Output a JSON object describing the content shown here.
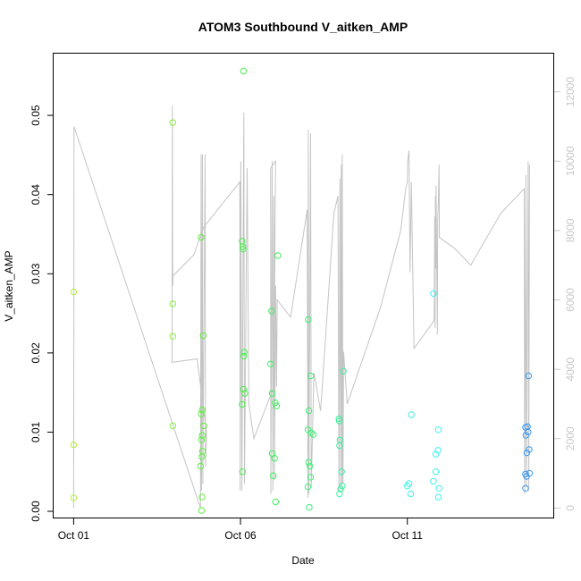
{
  "chart_data": {
    "type": "scatter",
    "title": "ATOM3 Southbound V_aitken_AMP",
    "xlabel": "Date",
    "ylabel": "V_aitken_AMP",
    "x_unit": "days since Oct 01",
    "x_ticks": [
      {
        "value": 0,
        "label": "Oct 01"
      },
      {
        "value": 5,
        "label": "Oct 06"
      },
      {
        "value": 10,
        "label": "Oct 11"
      }
    ],
    "xlim": [
      -0.6,
      14.4
    ],
    "y_ticks": [
      0.0,
      0.01,
      0.02,
      0.03,
      0.04,
      0.05
    ],
    "y_tick_labels": [
      "0.00",
      "0.01",
      "0.02",
      "0.03",
      "0.04",
      "0.05"
    ],
    "ylim": [
      -0.0009,
      0.0578
    ],
    "y2_ticks": [
      0,
      2000,
      4000,
      6000,
      8000,
      10000,
      12000
    ],
    "y2_tick_labels": [
      "0",
      "2000",
      "4000",
      "6000",
      "8000",
      "10000",
      "12000"
    ],
    "y2lim": [
      -300,
      13100
    ],
    "grid": false,
    "colors": {
      "trace": "#c4c4c4",
      "right_axis": "#c8c8c8"
    },
    "series": [
      {
        "role": "points",
        "points": [
          {
            "x": 0.0,
            "y": 0.0277,
            "color": "#b3f03c"
          },
          {
            "x": 0.0,
            "y": 0.0084,
            "color": "#b3f03c"
          },
          {
            "x": 0.0,
            "y": 0.0017,
            "color": "#b3f03c"
          },
          {
            "x": 2.97,
            "y": 0.0491,
            "color": "#87ef3b"
          },
          {
            "x": 2.97,
            "y": 0.0262,
            "color": "#87ef3b"
          },
          {
            "x": 2.97,
            "y": 0.0221,
            "color": "#87ef3b"
          },
          {
            "x": 2.97,
            "y": 0.0108,
            "color": "#87ef3b"
          },
          {
            "x": 3.82,
            "y": 0.0346,
            "color": "#5df03c"
          },
          {
            "x": 3.82,
            "y": 0.0123,
            "color": "#5df03c"
          },
          {
            "x": 3.85,
            "y": 0.0128,
            "color": "#5df03c"
          },
          {
            "x": 3.88,
            "y": 0.0222,
            "color": "#5df03c"
          },
          {
            "x": 3.9,
            "y": 0.0108,
            "color": "#5df03c"
          },
          {
            "x": 3.85,
            "y": 0.0096,
            "color": "#5df03c"
          },
          {
            "x": 3.83,
            "y": 0.009,
            "color": "#5df03c"
          },
          {
            "x": 3.86,
            "y": 0.0076,
            "color": "#5df03c"
          },
          {
            "x": 3.84,
            "y": 0.0069,
            "color": "#5df03c"
          },
          {
            "x": 3.8,
            "y": 0.0057,
            "color": "#5df03c"
          },
          {
            "x": 3.85,
            "y": 0.0018,
            "color": "#5df03c"
          },
          {
            "x": 3.83,
            "y": 0.0001,
            "color": "#5df03c"
          },
          {
            "x": 5.09,
            "y": 0.0556,
            "color": "#48f048"
          },
          {
            "x": 5.05,
            "y": 0.0341,
            "color": "#48f048"
          },
          {
            "x": 5.07,
            "y": 0.0334,
            "color": "#48f048"
          },
          {
            "x": 5.08,
            "y": 0.0331,
            "color": "#48f048"
          },
          {
            "x": 5.11,
            "y": 0.0201,
            "color": "#48f048"
          },
          {
            "x": 5.1,
            "y": 0.0196,
            "color": "#48f048"
          },
          {
            "x": 5.09,
            "y": 0.0154,
            "color": "#48f048"
          },
          {
            "x": 5.13,
            "y": 0.0149,
            "color": "#48f048"
          },
          {
            "x": 5.05,
            "y": 0.0135,
            "color": "#48f048"
          },
          {
            "x": 5.06,
            "y": 0.005,
            "color": "#48f048"
          },
          {
            "x": 5.93,
            "y": 0.0253,
            "color": "#3cf05a"
          },
          {
            "x": 6.12,
            "y": 0.0323,
            "color": "#3cf05a"
          },
          {
            "x": 5.9,
            "y": 0.0186,
            "color": "#3cf05a"
          },
          {
            "x": 5.95,
            "y": 0.0149,
            "color": "#3cf05a"
          },
          {
            "x": 6.04,
            "y": 0.0137,
            "color": "#3cf05a"
          },
          {
            "x": 6.08,
            "y": 0.0133,
            "color": "#3cf05a"
          },
          {
            "x": 5.95,
            "y": 0.0073,
            "color": "#3cf05a"
          },
          {
            "x": 6.02,
            "y": 0.0067,
            "color": "#3cf05a"
          },
          {
            "x": 5.98,
            "y": 0.0045,
            "color": "#3cf05a"
          },
          {
            "x": 6.05,
            "y": 0.0012,
            "color": "#3cf05a"
          },
          {
            "x": 7.03,
            "y": 0.0242,
            "color": "#3cf078"
          },
          {
            "x": 7.1,
            "y": 0.0171,
            "color": "#3cf078"
          },
          {
            "x": 7.05,
            "y": 0.0127,
            "color": "#3cf078"
          },
          {
            "x": 7.02,
            "y": 0.0103,
            "color": "#3cf078"
          },
          {
            "x": 7.12,
            "y": 0.0099,
            "color": "#3cf078"
          },
          {
            "x": 7.18,
            "y": 0.0097,
            "color": "#3cf078"
          },
          {
            "x": 7.04,
            "y": 0.0062,
            "color": "#3cf078"
          },
          {
            "x": 7.08,
            "y": 0.0057,
            "color": "#3cf078"
          },
          {
            "x": 7.1,
            "y": 0.0043,
            "color": "#3cf078"
          },
          {
            "x": 7.02,
            "y": 0.0031,
            "color": "#3cf078"
          },
          {
            "x": 7.06,
            "y": 0.0005,
            "color": "#3cf078"
          },
          {
            "x": 7.98,
            "y": 0.009,
            "color": "#3cf0a0"
          },
          {
            "x": 7.96,
            "y": 0.0114,
            "color": "#3cf0a0"
          },
          {
            "x": 7.95,
            "y": 0.0117,
            "color": "#3cf0a0"
          },
          {
            "x": 8.08,
            "y": 0.0177,
            "color": "#3cf0a0"
          },
          {
            "x": 7.97,
            "y": 0.0083,
            "color": "#3cf0a0"
          },
          {
            "x": 8.03,
            "y": 0.005,
            "color": "#3cf0a0"
          },
          {
            "x": 8.05,
            "y": 0.0032,
            "color": "#3cf0a0"
          },
          {
            "x": 8.0,
            "y": 0.0028,
            "color": "#3cf0a0"
          },
          {
            "x": 7.97,
            "y": 0.0022,
            "color": "#3cf0a0"
          },
          {
            "x": 10.05,
            "y": 0.0035,
            "color": "#3cf0e6"
          },
          {
            "x": 10.0,
            "y": 0.0032,
            "color": "#3cf0e6"
          },
          {
            "x": 10.12,
            "y": 0.0122,
            "color": "#3cf0e6"
          },
          {
            "x": 10.1,
            "y": 0.0022,
            "color": "#3cf0e6"
          },
          {
            "x": 10.78,
            "y": 0.0275,
            "color": "#3cf0f0"
          },
          {
            "x": 10.93,
            "y": 0.0103,
            "color": "#3cf0f0"
          },
          {
            "x": 10.92,
            "y": 0.0077,
            "color": "#3cf0f0"
          },
          {
            "x": 10.85,
            "y": 0.0072,
            "color": "#3cf0f0"
          },
          {
            "x": 10.85,
            "y": 0.005,
            "color": "#3cf0f0"
          },
          {
            "x": 10.78,
            "y": 0.0038,
            "color": "#3cf0f0"
          },
          {
            "x": 10.95,
            "y": 0.0029,
            "color": "#3cf0f0"
          },
          {
            "x": 10.93,
            "y": 0.0018,
            "color": "#3cf0f0"
          },
          {
            "x": 13.63,
            "y": 0.0171,
            "color": "#3c9bf0"
          },
          {
            "x": 13.54,
            "y": 0.0106,
            "color": "#3c9bf0"
          },
          {
            "x": 13.6,
            "y": 0.0107,
            "color": "#3c9bf0"
          },
          {
            "x": 13.55,
            "y": 0.0096,
            "color": "#3c9bf0"
          },
          {
            "x": 13.62,
            "y": 0.01,
            "color": "#3c9bf0"
          },
          {
            "x": 13.65,
            "y": 0.0078,
            "color": "#3c9bf0"
          },
          {
            "x": 13.58,
            "y": 0.0074,
            "color": "#3c9bf0"
          },
          {
            "x": 13.54,
            "y": 0.0047,
            "color": "#3c9bf0"
          },
          {
            "x": 13.57,
            "y": 0.0044,
            "color": "#3c9bf0"
          },
          {
            "x": 13.66,
            "y": 0.0048,
            "color": "#3c9bf0"
          },
          {
            "x": 13.54,
            "y": 0.0029,
            "color": "#3c9bf0"
          }
        ]
      },
      {
        "role": "trace",
        "axis": "right",
        "points": [
          {
            "x": 0.0,
            "y": 0
          },
          {
            "x": 0.01,
            "y": 11000
          },
          {
            "x": 3.8,
            "y": 0
          },
          {
            "x": 3.82,
            "y": 10200
          },
          {
            "x": 3.83,
            "y": 500
          },
          {
            "x": 3.86,
            "y": 10200
          },
          {
            "x": 3.87,
            "y": 700
          },
          {
            "x": 3.94,
            "y": 10200
          },
          {
            "x": 3.95,
            "y": 1200
          },
          {
            "x": 3.98,
            "y": 2200
          },
          {
            "x": 3.7,
            "y": 4300
          },
          {
            "x": 2.95,
            "y": 4200
          },
          {
            "x": 2.96,
            "y": 11600
          },
          {
            "x": 2.97,
            "y": 6400
          },
          {
            "x": 2.98,
            "y": 6700
          },
          {
            "x": 3.6,
            "y": 7300
          },
          {
            "x": 3.9,
            "y": 8100
          },
          {
            "x": 4.98,
            "y": 9400
          },
          {
            "x": 4.99,
            "y": 500
          },
          {
            "x": 5.01,
            "y": 10000
          },
          {
            "x": 5.04,
            "y": 500
          },
          {
            "x": 5.1,
            "y": 11400
          },
          {
            "x": 5.12,
            "y": 700
          },
          {
            "x": 5.2,
            "y": 9800
          },
          {
            "x": 5.25,
            "y": 3000
          },
          {
            "x": 5.4,
            "y": 2000
          },
          {
            "x": 6.0,
            "y": 3500
          },
          {
            "x": 6.05,
            "y": 10000
          },
          {
            "x": 5.9,
            "y": 9800
          },
          {
            "x": 5.91,
            "y": 400
          },
          {
            "x": 5.95,
            "y": 10000
          },
          {
            "x": 5.97,
            "y": 500
          },
          {
            "x": 6.0,
            "y": 9000
          },
          {
            "x": 6.02,
            "y": 800
          },
          {
            "x": 6.05,
            "y": 6400
          },
          {
            "x": 6.08,
            "y": 3500
          },
          {
            "x": 6.1,
            "y": 6000
          },
          {
            "x": 6.5,
            "y": 5500
          },
          {
            "x": 7.0,
            "y": 8600
          },
          {
            "x": 7.02,
            "y": 300
          },
          {
            "x": 7.03,
            "y": 10900
          },
          {
            "x": 7.05,
            "y": 400
          },
          {
            "x": 7.1,
            "y": 10800
          },
          {
            "x": 7.12,
            "y": 600
          },
          {
            "x": 7.2,
            "y": 3900
          },
          {
            "x": 7.4,
            "y": 2800
          },
          {
            "x": 7.8,
            "y": 8500
          },
          {
            "x": 7.92,
            "y": 9000
          },
          {
            "x": 7.95,
            "y": 500
          },
          {
            "x": 7.98,
            "y": 9500
          },
          {
            "x": 8.0,
            "y": 600
          },
          {
            "x": 8.02,
            "y": 9900
          },
          {
            "x": 8.04,
            "y": 500
          },
          {
            "x": 8.05,
            "y": 10200
          },
          {
            "x": 8.07,
            "y": 700
          },
          {
            "x": 8.09,
            "y": 4500
          },
          {
            "x": 8.2,
            "y": 3000
          },
          {
            "x": 9.2,
            "y": 5800
          },
          {
            "x": 9.8,
            "y": 8000
          },
          {
            "x": 9.95,
            "y": 9200
          },
          {
            "x": 10.0,
            "y": 9400
          },
          {
            "x": 10.01,
            "y": 10000
          },
          {
            "x": 10.05,
            "y": 10300
          },
          {
            "x": 10.08,
            "y": 6800
          },
          {
            "x": 10.12,
            "y": 9400
          },
          {
            "x": 10.2,
            "y": 4600
          },
          {
            "x": 10.8,
            "y": 5400
          },
          {
            "x": 10.81,
            "y": 6100
          },
          {
            "x": 10.82,
            "y": 8400
          },
          {
            "x": 10.83,
            "y": 5200
          },
          {
            "x": 10.84,
            "y": 9000
          },
          {
            "x": 10.85,
            "y": 6900
          },
          {
            "x": 10.86,
            "y": 9300
          },
          {
            "x": 10.9,
            "y": 5000
          },
          {
            "x": 10.91,
            "y": 8300
          },
          {
            "x": 10.93,
            "y": 8900
          },
          {
            "x": 10.95,
            "y": 9900
          },
          {
            "x": 10.96,
            "y": 7800
          },
          {
            "x": 11.4,
            "y": 7500
          },
          {
            "x": 11.9,
            "y": 7000
          },
          {
            "x": 12.8,
            "y": 8500
          },
          {
            "x": 13.5,
            "y": 9200
          },
          {
            "x": 13.52,
            "y": 400
          },
          {
            "x": 13.55,
            "y": 9600
          },
          {
            "x": 13.57,
            "y": 600
          },
          {
            "x": 13.62,
            "y": 10000
          },
          {
            "x": 13.64,
            "y": 500
          },
          {
            "x": 13.66,
            "y": 9900
          }
        ]
      }
    ]
  }
}
